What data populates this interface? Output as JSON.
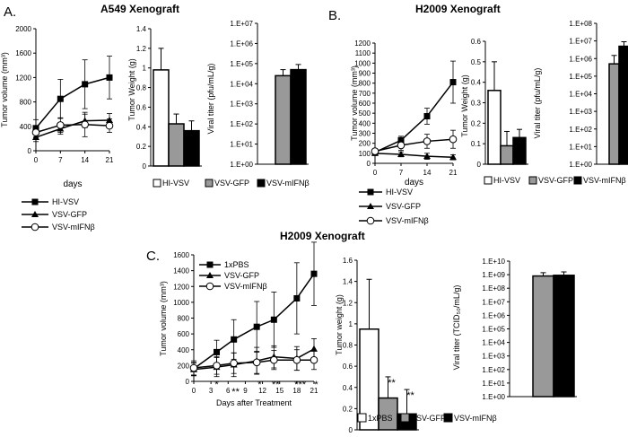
{
  "figure": {
    "panels": {
      "a": "A.",
      "b": "B.",
      "c": "C."
    },
    "titles": {
      "a": "A549 Xenograft",
      "b": "H2009 Xenograft",
      "c": "H2009 Xenograft"
    }
  },
  "chart_data": [
    {
      "id": "a_volume",
      "type": "line",
      "ylabel": "Tumor volume (mm³)",
      "xlabel": "days",
      "x": [
        0,
        7,
        14,
        21
      ],
      "xticks": [
        "0",
        "7",
        "14",
        "21"
      ],
      "ylim": [
        0,
        2000
      ],
      "yticks": [
        "0",
        "400",
        "800",
        "1200",
        "1600",
        "2000"
      ],
      "series": [
        {
          "name": "HI-VSV",
          "marker": "square",
          "values": [
            370,
            850,
            1090,
            1200
          ],
          "err": [
            140,
            320,
            400,
            350
          ]
        },
        {
          "name": "VSV-GFP",
          "marker": "triangle",
          "values": [
            220,
            360,
            490,
            500
          ],
          "err": [
            70,
            90,
            110,
            110
          ]
        },
        {
          "name": "VSV-mIFNβ",
          "marker": "circle",
          "values": [
            300,
            420,
            430,
            410
          ],
          "err": [
            90,
            120,
            200,
            110
          ]
        }
      ]
    },
    {
      "id": "a_weight",
      "type": "bar",
      "ylabel": "Tumor Weight (g)",
      "ylim": [
        0,
        1.4
      ],
      "categories": [
        "HI-VSV",
        "VSV-GFP",
        "VSV-mIFNβ"
      ],
      "values": [
        0.98,
        0.43,
        0.36
      ],
      "err": [
        0.22,
        0.1,
        0.1
      ],
      "fills": [
        "#ffffff",
        "#999999",
        "#000000"
      ]
    },
    {
      "id": "a_titer",
      "type": "bar",
      "scale": "log",
      "ylim": [
        1,
        10000000
      ],
      "yticks": [
        "1.E+00",
        "1.E+01",
        "1.E+02",
        "1.E+03",
        "1.E+04",
        "1.E+05",
        "1.E+06",
        "1.E+07"
      ],
      "ylabel": "Viral titer (pfu/mL/g)",
      "categories": [
        "HI-VSV",
        "VSV-GFP",
        "VSV-mIFNβ"
      ],
      "values": [
        1,
        25000,
        50000
      ],
      "err_hi": [
        1,
        50000,
        90000
      ],
      "fills": [
        "#ffffff",
        "#999999",
        "#000000"
      ]
    },
    {
      "id": "a_legend",
      "type": "legend",
      "entries": [
        "HI-VSV",
        "VSV-GFP",
        "VSV-mIFNβ"
      ]
    },
    {
      "id": "a_bar_legend",
      "type": "legend",
      "entries": [
        "HI-VSV",
        "VSV-GFP",
        "VSV-mIFNβ"
      ]
    },
    {
      "id": "b_volume",
      "type": "line",
      "ylabel": "Tumor volume (mm³)",
      "xlabel": "days",
      "x": [
        0,
        7,
        14,
        21
      ],
      "xticks": [
        "0",
        "7",
        "14",
        "21"
      ],
      "ylim": [
        0,
        1200
      ],
      "yticks": [
        "0",
        "100",
        "200",
        "300",
        "400",
        "500",
        "600",
        "700",
        "800",
        "900",
        "1000",
        "1100",
        "1200"
      ],
      "series": [
        {
          "name": "HI-VSV",
          "marker": "square",
          "values": [
            110,
            230,
            470,
            810
          ],
          "err": [
            30,
            40,
            80,
            210
          ]
        },
        {
          "name": "VSV-GFP",
          "marker": "triangle",
          "values": [
            100,
            90,
            70,
            60
          ],
          "err": [
            20,
            25,
            30,
            25
          ]
        },
        {
          "name": "VSV-mIFNβ",
          "marker": "circle",
          "values": [
            120,
            180,
            220,
            240
          ],
          "err": [
            25,
            50,
            70,
            90
          ]
        }
      ]
    },
    {
      "id": "b_weight",
      "type": "bar",
      "ylabel": "Tumor Weight (g)",
      "ylim": [
        0,
        0.6
      ],
      "yticks": [
        "0",
        "0.1",
        "0.2",
        "0.3",
        "0.4",
        "0.5",
        "0.6"
      ],
      "categories": [
        "HI-VSV",
        "VSV-GFP",
        "VSV-mIFNβ"
      ],
      "values": [
        0.36,
        0.09,
        0.13
      ],
      "err": [
        0.14,
        0.07,
        0.04
      ],
      "fills": [
        "#ffffff",
        "#999999",
        "#000000"
      ]
    },
    {
      "id": "b_titer",
      "type": "bar",
      "scale": "log",
      "ylim": [
        1,
        100000000
      ],
      "yticks": [
        "1.E+00",
        "1.E+01",
        "1.E+02",
        "1.E+03",
        "1.E+04",
        "1.E+05",
        "1.E+06",
        "1.E+07",
        "1.E+08"
      ],
      "ylabel": "Viral titer (pfu/mL/g)",
      "categories": [
        "HI-VSV",
        "VSV-GFP",
        "VSV-mIFNβ"
      ],
      "values": [
        1,
        500000,
        5000000
      ],
      "err_hi": [
        1,
        1500000,
        9000000
      ],
      "fills": [
        "#ffffff",
        "#999999",
        "#000000"
      ]
    },
    {
      "id": "b_legend",
      "type": "legend",
      "entries": [
        "HI-VSV",
        "VSV-GFP",
        "VSV-mIFNβ"
      ]
    },
    {
      "id": "b_bar_legend",
      "type": "legend",
      "entries": [
        "HI-VSV",
        "VSV-GFP",
        "VSV-mIFNβ"
      ]
    },
    {
      "id": "c_volume",
      "type": "line",
      "ylabel": "Tumor volume (mm³)",
      "xlabel": "Days after Treatment",
      "x": [
        0,
        3,
        6,
        9,
        12,
        15,
        18,
        21
      ],
      "xticks": [
        "0",
        "3",
        "6",
        "9",
        "12",
        "15",
        "18",
        "21"
      ],
      "ylim": [
        0,
        1600
      ],
      "yticks": [
        "0",
        "200",
        "400",
        "600",
        "800",
        "1000",
        "1200",
        "1400",
        "1600"
      ],
      "series": [
        {
          "name": "1xPBS",
          "marker": "square",
          "values": [
            160,
            370,
            530,
            690,
            780,
            1050,
            1360
          ],
          "x": [
            0,
            4,
            7,
            11,
            14,
            18,
            21
          ],
          "err": [
            80,
            150,
            250,
            320,
            350,
            450,
            400
          ]
        },
        {
          "name": "VSV-GFP",
          "marker": "triangle",
          "values": [
            150,
            180,
            210,
            260,
            310,
            290,
            410
          ],
          "x": [
            0,
            4,
            7,
            11,
            14,
            18,
            21
          ],
          "err": [
            80,
            120,
            150,
            170,
            140,
            150,
            130
          ]
        },
        {
          "name": "VSV-mIFNβ",
          "marker": "circle",
          "values": [
            170,
            200,
            230,
            240,
            270,
            270,
            270
          ],
          "x": [
            0,
            4,
            7,
            11,
            14,
            18,
            21
          ],
          "err": [
            90,
            110,
            130,
            140,
            120,
            130,
            120
          ]
        }
      ],
      "annotations": [
        "*",
        "**",
        "*",
        "**",
        "***",
        "*"
      ]
    },
    {
      "id": "c_weight",
      "type": "bar",
      "ylabel": "Tumor weight (g)",
      "ylim": [
        0,
        1.6
      ],
      "yticks": [
        "0",
        "0.2",
        "0.4",
        "0.6",
        "0.8",
        "1",
        "1.2",
        "1.4",
        "1.6"
      ],
      "categories": [
        "1xPBS",
        "VSV-GFP",
        "VSV-mIFNβ"
      ],
      "values": [
        0.95,
        0.3,
        0.15
      ],
      "err": [
        0.47,
        0.2,
        0.23
      ],
      "fills": [
        "#ffffff",
        "#999999",
        "#000000"
      ],
      "annotations": [
        "**",
        "**"
      ]
    },
    {
      "id": "c_titer",
      "type": "bar",
      "scale": "log",
      "ylim": [
        1,
        10000000000
      ],
      "yticks": [
        "1.E+00",
        "1.E+01",
        "1.E+02",
        "1.E+03",
        "1.E+04",
        "1.E+05",
        "1.E+06",
        "1.E+07",
        "1.E+08",
        "1.E+09",
        "1.E+10"
      ],
      "ylabel": "Viral titer (TCID₅₀/mL/g)",
      "categories": [
        "1xPBS",
        "VSV-GFP",
        "VSV-mIFNβ"
      ],
      "values": [
        1,
        800000000,
        900000000
      ],
      "err_hi": [
        1,
        1400000000,
        1600000000
      ],
      "fills": [
        "#ffffff",
        "#999999",
        "#000000"
      ]
    },
    {
      "id": "c_legend",
      "type": "legend",
      "entries": [
        "1xPBS",
        "VSV-GFP",
        "VSV-mIFNβ"
      ]
    },
    {
      "id": "c_bar_legend",
      "type": "legend",
      "entries": [
        "1xPBS",
        "VSV-GFP",
        "VSV-mIFNβ"
      ]
    }
  ]
}
